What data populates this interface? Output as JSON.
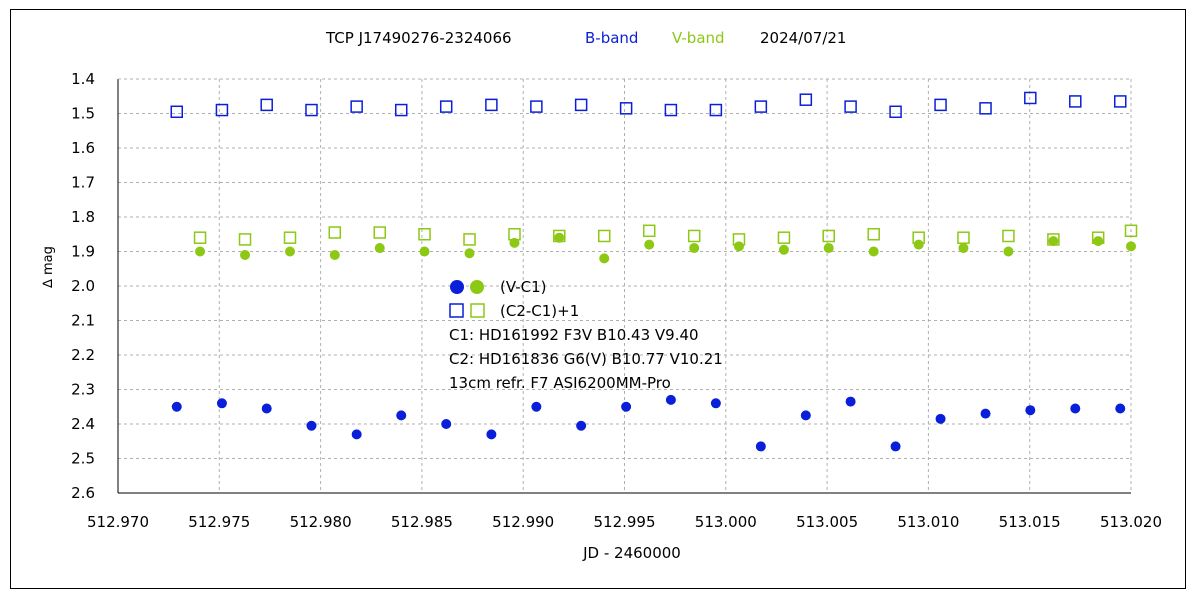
{
  "colors": {
    "b_band": "#0a1fd9",
    "v_band": "#8cc814",
    "grid": "#b0b0b0",
    "axis": "#000000"
  },
  "chart_data": {
    "type": "scatter",
    "title": {
      "target": "TCP J17490276-2324066",
      "b_label": "B-band",
      "v_label": "V-band",
      "date": "2024/07/21"
    },
    "xlabel": "JD - 2460000",
    "ylabel": "∆ mag",
    "xlim": [
      512.97,
      513.02
    ],
    "ylim": [
      2.6,
      1.4
    ],
    "y_inverted": true,
    "grid": true,
    "xticks": [
      "512.970",
      "512.975",
      "512.980",
      "512.985",
      "512.990",
      "512.995",
      "513.000",
      "513.005",
      "513.010",
      "513.015",
      "513.020"
    ],
    "yticks": [
      "1.4",
      "1.5",
      "1.6",
      "1.7",
      "1.8",
      "1.9",
      "2.0",
      "2.1",
      "2.2",
      "2.3",
      "2.4",
      "2.5",
      "2.6"
    ],
    "series": [
      {
        "band": "B",
        "kind": "V-C1",
        "marker": "filled-circle",
        "color_key": "b_band",
        "x": [
          512.9729,
          512.97513,
          512.97734,
          512.97955,
          512.98178,
          512.98398,
          512.9862,
          512.98843,
          512.99065,
          512.99286,
          512.99508,
          512.99729,
          512.99951,
          513.00173,
          513.00395,
          513.00616,
          513.00838,
          513.0106,
          513.01282,
          513.01503,
          513.01725,
          513.01947
        ],
        "y": [
          2.35,
          2.34,
          2.355,
          2.405,
          2.43,
          2.375,
          2.4,
          2.43,
          2.35,
          2.405,
          2.35,
          2.33,
          2.34,
          2.465,
          2.375,
          2.335,
          2.465,
          2.385,
          2.37,
          2.36,
          2.355,
          2.355
        ]
      },
      {
        "band": "B",
        "kind": "(C2-C1)+1",
        "marker": "open-square",
        "color_key": "b_band",
        "x": [
          512.9729,
          512.97513,
          512.97734,
          512.97955,
          512.98178,
          512.98398,
          512.9862,
          512.98843,
          512.99065,
          512.99286,
          512.99508,
          512.99729,
          512.99951,
          513.00173,
          513.00395,
          513.00616,
          513.00838,
          513.0106,
          513.01282,
          513.01503,
          513.01725,
          513.01947
        ],
        "y": [
          1.495,
          1.49,
          1.475,
          1.49,
          1.48,
          1.49,
          1.48,
          1.475,
          1.48,
          1.475,
          1.485,
          1.49,
          1.49,
          1.48,
          1.46,
          1.48,
          1.495,
          1.475,
          1.485,
          1.455,
          1.465,
          1.465
        ]
      },
      {
        "band": "V",
        "kind": "V-C1",
        "marker": "filled-circle",
        "color_key": "v_band",
        "x": [
          512.97405,
          512.97627,
          512.97849,
          512.9807,
          512.98292,
          512.98513,
          512.98735,
          512.98957,
          512.99178,
          512.994,
          512.99622,
          512.99844,
          513.00065,
          513.00287,
          513.00508,
          513.0073,
          513.00952,
          513.01173,
          513.01395,
          513.01617,
          513.01838,
          513.02
        ],
        "y": [
          1.9,
          1.91,
          1.9,
          1.91,
          1.89,
          1.9,
          1.905,
          1.875,
          1.86,
          1.92,
          1.88,
          1.89,
          1.885,
          1.895,
          1.89,
          1.9,
          1.88,
          1.89,
          1.9,
          1.87,
          1.87,
          1.885
        ]
      },
      {
        "band": "V",
        "kind": "(C2-C1)+1",
        "marker": "open-square",
        "color_key": "v_band",
        "x": [
          512.97405,
          512.97627,
          512.97849,
          512.9807,
          512.98292,
          512.98513,
          512.98735,
          512.98957,
          512.99178,
          512.994,
          512.99622,
          512.99844,
          513.00065,
          513.00287,
          513.00508,
          513.0073,
          513.00952,
          513.01173,
          513.01395,
          513.01617,
          513.01838,
          513.02
        ],
        "y": [
          1.86,
          1.865,
          1.86,
          1.845,
          1.845,
          1.85,
          1.865,
          1.85,
          1.855,
          1.855,
          1.84,
          1.855,
          1.865,
          1.86,
          1.855,
          1.85,
          1.86,
          1.86,
          1.855,
          1.865,
          1.86,
          1.84
        ]
      }
    ],
    "legend": {
      "placement": "center",
      "lines": [
        {
          "symbols": "filled-circles",
          "text": "(V-C1)"
        },
        {
          "symbols": "open-squares",
          "text": "(C2-C1)+1"
        },
        {
          "text": "C1: HD161992  F3V   B10.43   V9.40"
        },
        {
          "text": "C2: HD161836  G6(V)   B10.77   V10.21"
        },
        {
          "text": "13cm refr. F7     ASI6200MM-Pro"
        }
      ]
    }
  }
}
